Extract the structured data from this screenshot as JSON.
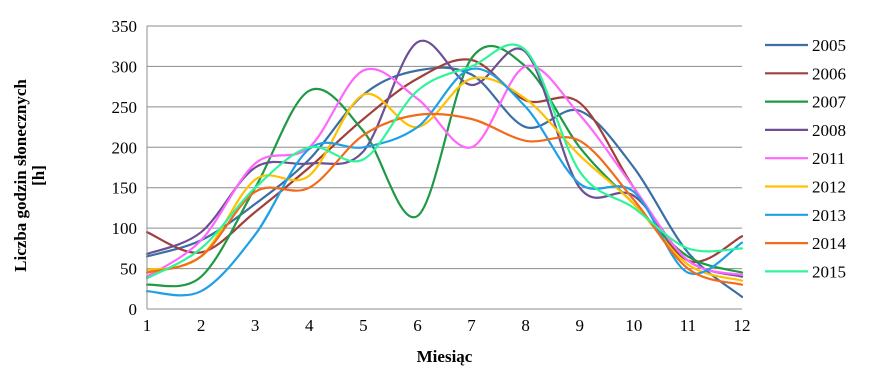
{
  "chart_data": {
    "type": "line",
    "xlabel": "Miesiąc",
    "ylabel_lines": [
      "Liczba godzin słonecznych",
      "[h]"
    ],
    "x": [
      1,
      2,
      3,
      4,
      5,
      6,
      7,
      8,
      9,
      10,
      11,
      12
    ],
    "xlim": [
      1,
      12
    ],
    "ylim": [
      0,
      350
    ],
    "yticks": [
      0,
      50,
      100,
      150,
      200,
      250,
      300,
      350
    ],
    "grid": true,
    "legend_position": "right",
    "series": [
      {
        "name": "2005",
        "color": "#3a6ea5",
        "values": [
          65,
          85,
          130,
          185,
          265,
          295,
          290,
          225,
          245,
          175,
          70,
          15
        ]
      },
      {
        "name": "2006",
        "color": "#a0403c",
        "values": [
          95,
          70,
          120,
          175,
          235,
          285,
          308,
          258,
          255,
          150,
          60,
          90
        ]
      },
      {
        "name": "2007",
        "color": "#1e9a45",
        "values": [
          30,
          40,
          150,
          270,
          220,
          115,
          310,
          300,
          200,
          130,
          65,
          45
        ]
      },
      {
        "name": "2008",
        "color": "#6d4f94",
        "values": [
          68,
          95,
          175,
          180,
          195,
          330,
          277,
          318,
          150,
          140,
          60,
          40
        ]
      },
      {
        "name": "2011",
        "color": "#ff66ff",
        "values": [
          40,
          85,
          180,
          200,
          295,
          260,
          200,
          300,
          240,
          150,
          60,
          42
        ]
      },
      {
        "name": "2012",
        "color": "#ffc000",
        "values": [
          48,
          65,
          160,
          165,
          265,
          225,
          285,
          260,
          190,
          130,
          55,
          35
        ]
      },
      {
        "name": "2013",
        "color": "#1ea0e6",
        "values": [
          22,
          22,
          92,
          198,
          200,
          225,
          297,
          250,
          155,
          145,
          45,
          82
        ]
      },
      {
        "name": "2014",
        "color": "#f26b1b",
        "values": [
          45,
          65,
          145,
          150,
          215,
          240,
          235,
          208,
          208,
          135,
          50,
          30
        ]
      },
      {
        "name": "2015",
        "color": "#2ef59a",
        "values": [
          38,
          75,
          150,
          200,
          185,
          270,
          300,
          320,
          170,
          125,
          75,
          75
        ]
      }
    ]
  }
}
